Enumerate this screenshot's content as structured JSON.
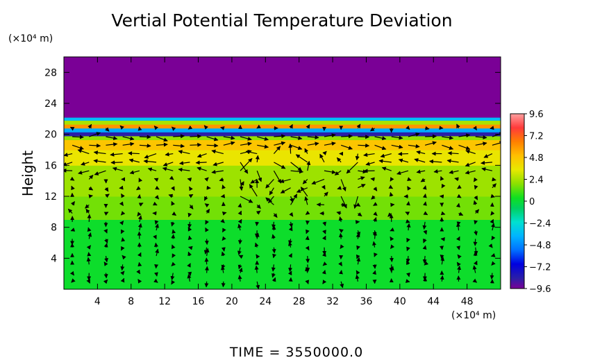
{
  "chart_data": {
    "type": "heatmap",
    "title": "Vertial Potential Temperature Deviation",
    "ylabel": "Height",
    "x_unit": "(×10⁴ m)",
    "y_unit": "(×10⁴ m)",
    "xlim": [
      0,
      52
    ],
    "ylim": [
      0,
      30
    ],
    "x_ticks": [
      4,
      8,
      12,
      16,
      20,
      24,
      28,
      32,
      36,
      40,
      44,
      48
    ],
    "y_ticks": [
      4,
      8,
      12,
      16,
      20,
      24,
      28
    ],
    "colorbar": {
      "min": -9.6,
      "max": 9.6,
      "tick_values": [
        9.6,
        7.2,
        4.8,
        2.4,
        0,
        -2.4,
        -4.8,
        -7.2,
        -9.6
      ],
      "tick_labels": [
        "9.6",
        "7.2",
        "4.8",
        "2.4",
        "0",
        "−2.4",
        "−4.8",
        "−7.2",
        "−9.6"
      ]
    },
    "field_bands": [
      {
        "y_from": 0,
        "y_to": 9,
        "value": 0.2
      },
      {
        "y_from": 9,
        "y_to": 12,
        "value": 1.6
      },
      {
        "y_from": 12,
        "y_to": 16,
        "value": 2.2
      },
      {
        "y_from": 16,
        "y_to": 18,
        "value": 3.6
      },
      {
        "y_from": 18,
        "y_to": 19.3,
        "value": 4.8
      },
      {
        "y_from": 19.3,
        "y_to": 19.8,
        "value": 2.0
      },
      {
        "y_from": 19.8,
        "y_to": 20.3,
        "value": -8.5
      },
      {
        "y_from": 20.3,
        "y_to": 20.8,
        "value": -4.0
      },
      {
        "y_from": 20.8,
        "y_to": 21.3,
        "value": 6.0
      },
      {
        "y_from": 21.3,
        "y_to": 21.8,
        "value": 2.4
      },
      {
        "y_from": 21.8,
        "y_to": 22.2,
        "value": -3.5
      },
      {
        "y_from": 22.2,
        "y_to": 30,
        "value": -9.6
      }
    ],
    "vectors": "wind field arrows (u, w) over the domain"
  },
  "footer": {
    "time_label": "TIME = 3550000.0"
  }
}
